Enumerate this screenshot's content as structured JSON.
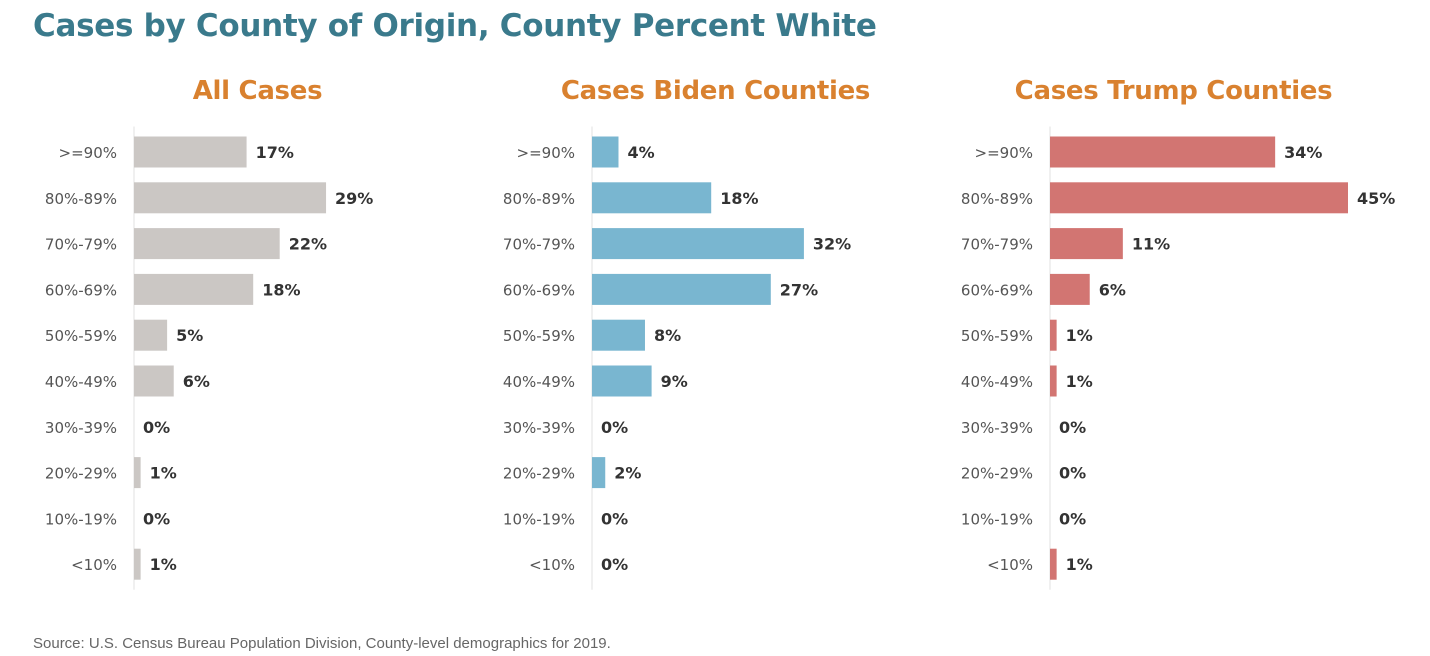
{
  "title": "Cases by County of Origin, County Percent White",
  "source": "Source: U.S. Census Bureau Population Division, County-level demographics for 2019.",
  "colors": {
    "title": "#3a7a8c",
    "panel_title": "#d9812f",
    "all": "#cbc7c4",
    "biden": "#79b6d0",
    "trump": "#d27572"
  },
  "chart_data": [
    {
      "type": "bar",
      "orientation": "horizontal",
      "title": "All Cases",
      "categories": [
        ">=90%",
        "80%-89%",
        "70%-79%",
        "60%-69%",
        "50%-59%",
        "40%-49%",
        "30%-39%",
        "20%-29%",
        "10%-19%",
        "<10%"
      ],
      "values": [
        17,
        29,
        22,
        18,
        5,
        6,
        0,
        1,
        0,
        1
      ],
      "value_labels": [
        "17%",
        "29%",
        "22%",
        "18%",
        "5%",
        "6%",
        "0%",
        "1%",
        "0%",
        "1%"
      ],
      "unit": "%",
      "xlim": [
        0,
        45
      ],
      "color": "#cbc7c4"
    },
    {
      "type": "bar",
      "orientation": "horizontal",
      "title": "Cases Biden Counties",
      "categories": [
        ">=90%",
        "80%-89%",
        "70%-79%",
        "60%-69%",
        "50%-59%",
        "40%-49%",
        "30%-39%",
        "20%-29%",
        "10%-19%",
        "<10%"
      ],
      "values": [
        4,
        18,
        32,
        27,
        8,
        9,
        0,
        2,
        0,
        0
      ],
      "value_labels": [
        "4%",
        "18%",
        "32%",
        "27%",
        "8%",
        "9%",
        "0%",
        "2%",
        "0%",
        "0%"
      ],
      "unit": "%",
      "xlim": [
        0,
        45
      ],
      "color": "#79b6d0"
    },
    {
      "type": "bar",
      "orientation": "horizontal",
      "title": "Cases Trump Counties",
      "categories": [
        ">=90%",
        "80%-89%",
        "70%-79%",
        "60%-69%",
        "50%-59%",
        "40%-49%",
        "30%-39%",
        "20%-29%",
        "10%-19%",
        "<10%"
      ],
      "values": [
        34,
        45,
        11,
        6,
        1,
        1,
        0,
        0,
        0,
        1
      ],
      "value_labels": [
        "34%",
        "45%",
        "11%",
        "6%",
        "1%",
        "1%",
        "0%",
        "0%",
        "0%",
        "1%"
      ],
      "unit": "%",
      "xlim": [
        0,
        45
      ],
      "color": "#d27572"
    }
  ]
}
